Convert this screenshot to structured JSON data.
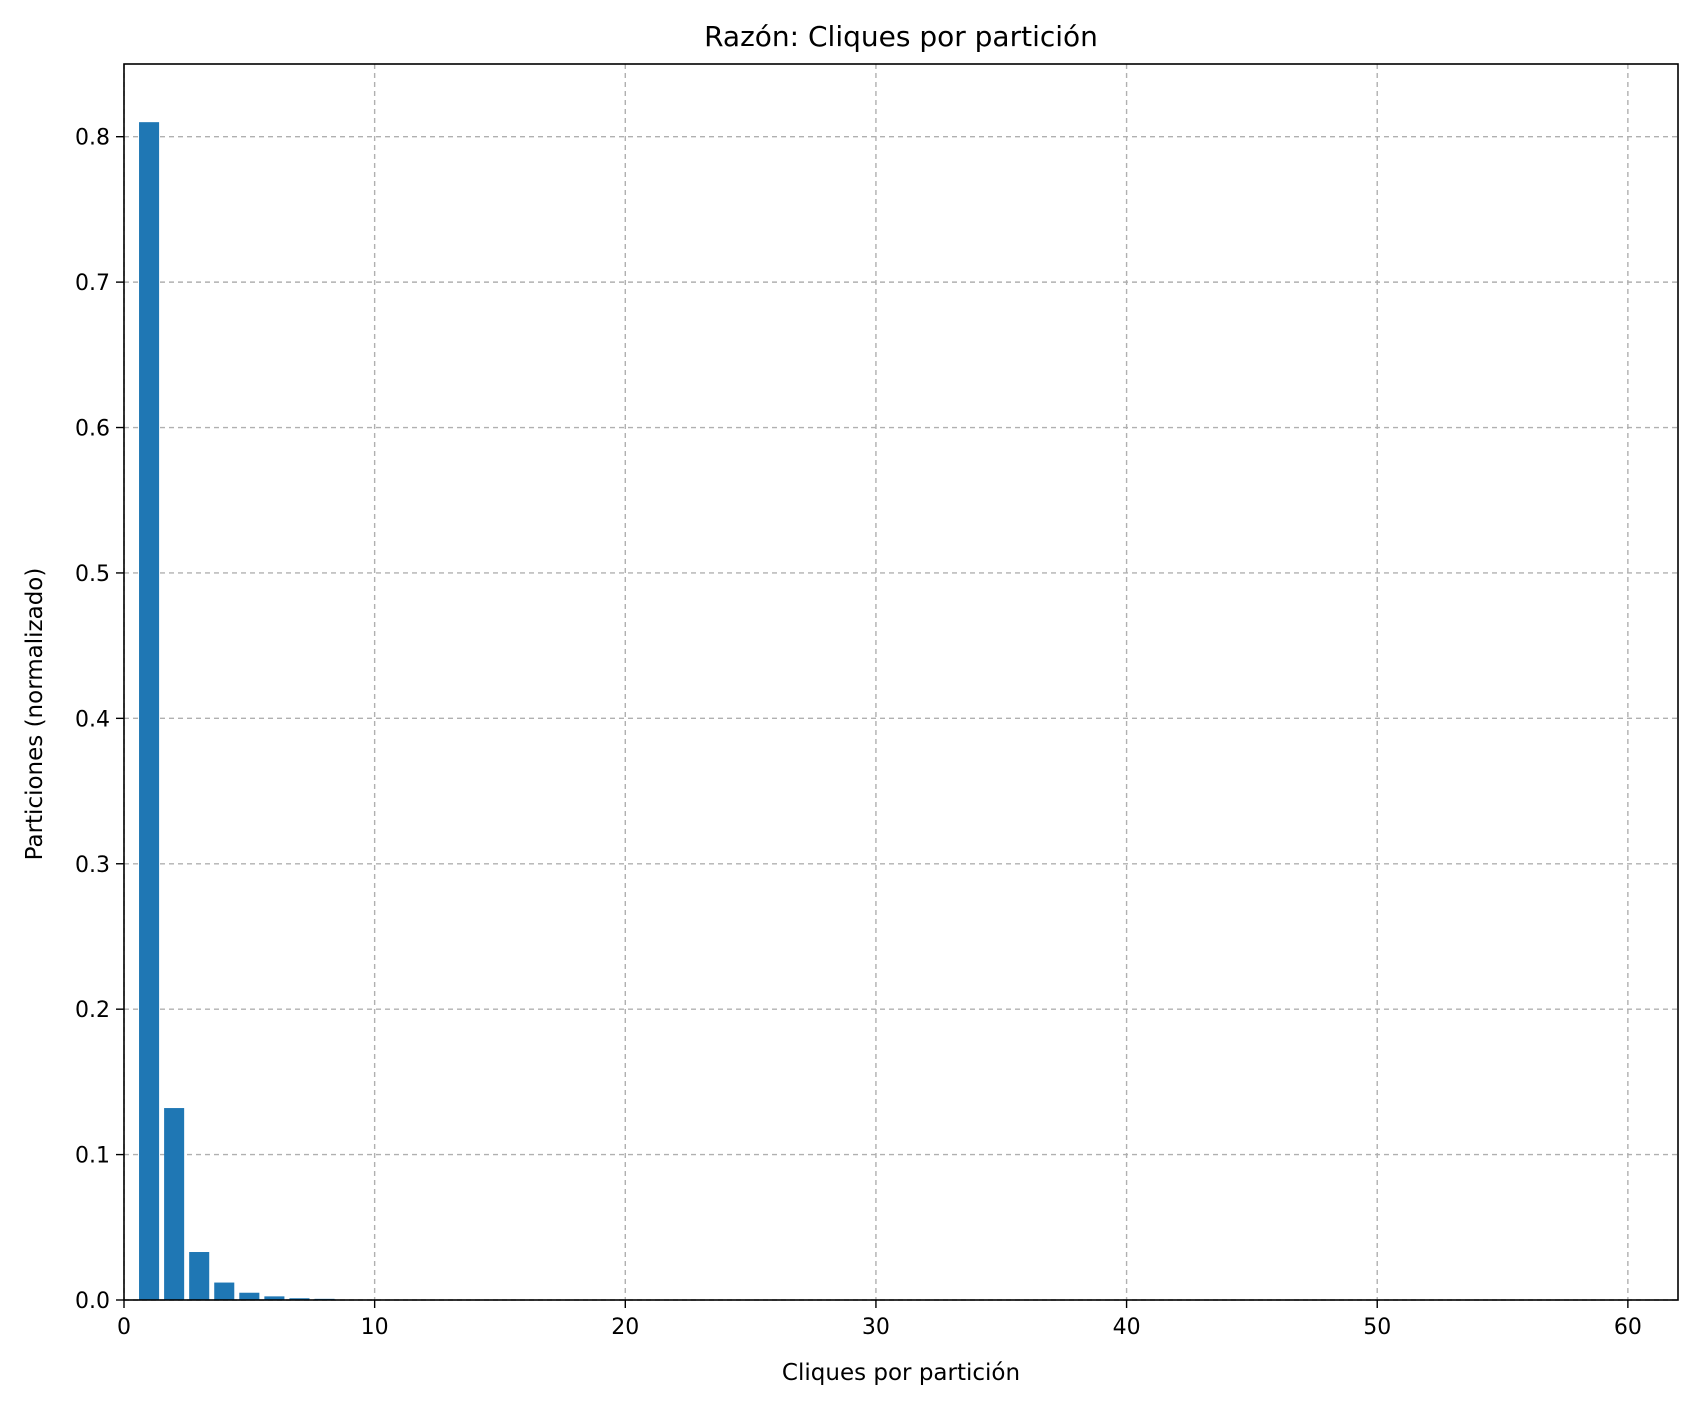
{
  "chart_data": {
    "type": "bar",
    "title": "Razón: Cliques por partición",
    "xlabel": "Cliques por partición",
    "ylabel": "Particiones (normalizado)",
    "xlim": [
      0,
      62
    ],
    "ylim": [
      0,
      0.85
    ],
    "x": [
      1,
      2,
      3,
      4,
      5,
      6,
      7,
      8
    ],
    "values": [
      0.81,
      0.132,
      0.033,
      0.012,
      0.005,
      0.0025,
      0.0012,
      0.0008
    ],
    "xticks": [
      "0",
      "10",
      "20",
      "30",
      "40",
      "50",
      "60"
    ],
    "yticks": [
      "0.0",
      "0.1",
      "0.2",
      "0.3",
      "0.4",
      "0.5",
      "0.6",
      "0.7",
      "0.8"
    ],
    "grid": true,
    "bar_color": "#1f77b4",
    "grid_color": "#b0b0b0"
  }
}
